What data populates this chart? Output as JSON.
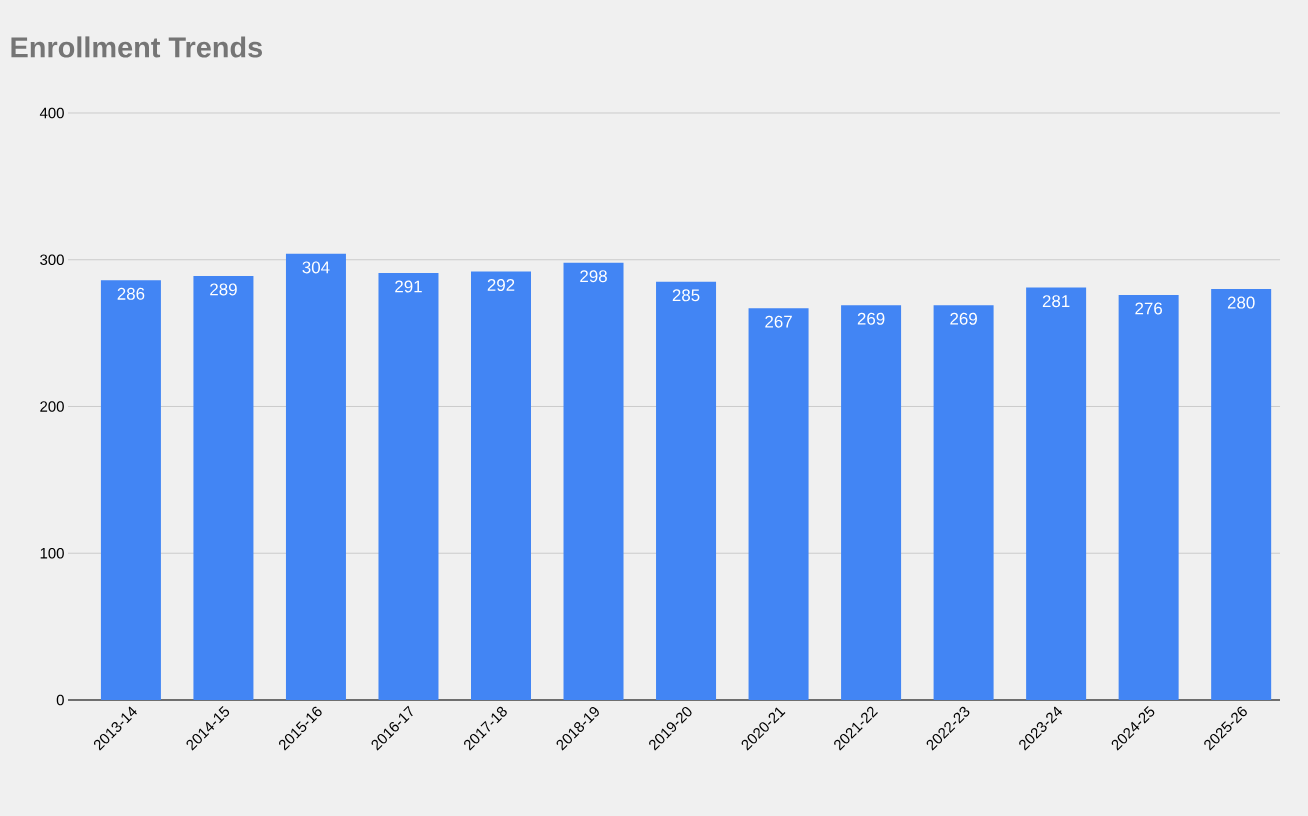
{
  "chart_data": {
    "type": "bar",
    "title": "Enrollment Trends",
    "categories": [
      "2013-14",
      "2014-15",
      "2015-16",
      "2016-17",
      "2017-18",
      "2018-19",
      "2019-20",
      "2020-21",
      "2021-22",
      "2022-23",
      "2023-24",
      "2024-25",
      "2025-26"
    ],
    "values": [
      286,
      289,
      304,
      291,
      292,
      298,
      285,
      267,
      269,
      269,
      281,
      276,
      280
    ],
    "color": "#4285f4",
    "ylim": [
      0,
      400
    ],
    "yticks": [
      0,
      100,
      200,
      300,
      400
    ],
    "grid": "y",
    "data_labels": true
  }
}
